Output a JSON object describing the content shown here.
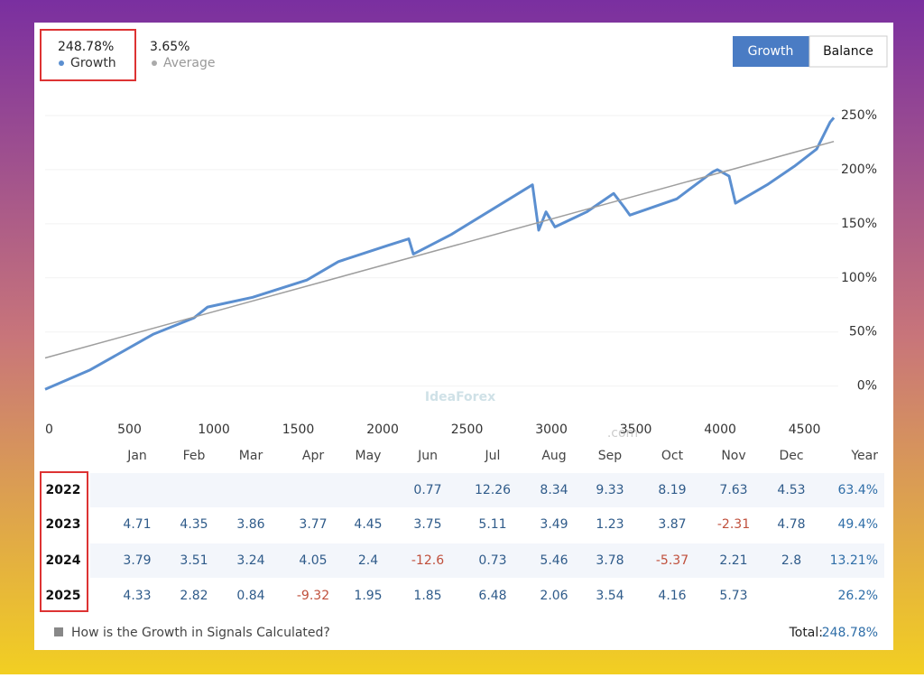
{
  "header": {
    "stats": [
      {
        "value": "248.78%",
        "label": "Growth"
      },
      {
        "value": "3.65%",
        "label": "Average"
      }
    ],
    "tabs": [
      "Growth",
      "Balance"
    ]
  },
  "chart_data": {
    "type": "line",
    "xlim": [
      0,
      4700
    ],
    "xticks": [
      0,
      500,
      1000,
      1500,
      2000,
      2500,
      3000,
      3500,
      4000,
      4500
    ],
    "ylim": [
      -27,
      265
    ],
    "yticks": [
      {
        "value": 0,
        "label": "0%"
      },
      {
        "value": 50,
        "label": "50%"
      },
      {
        "value": 100,
        "label": "100%"
      },
      {
        "value": 150,
        "label": "150%"
      },
      {
        "value": 200,
        "label": "200%"
      },
      {
        "value": 250,
        "label": "250%"
      }
    ],
    "series": [
      {
        "color": "#5b8fd0",
        "x": [
          0,
          267,
          642,
          882,
          963,
          1230,
          1551,
          1738,
          2032,
          2155,
          2182,
          2406,
          2888,
          2925,
          2968,
          3021,
          3209,
          3369,
          3433,
          3465,
          3743,
          3957,
          3984,
          4053,
          4091,
          4278,
          4439,
          4572,
          4652,
          4674
        ],
        "values": [
          -3,
          15,
          48,
          63,
          73,
          82,
          98,
          115,
          130,
          136,
          122,
          140,
          186,
          144,
          161,
          147,
          161,
          178,
          165,
          158,
          173,
          198,
          200,
          194,
          169,
          186,
          203,
          219,
          244,
          248
        ]
      },
      {
        "color": "#9e9e9e",
        "x": [
          0,
          4674
        ],
        "values": [
          26,
          226
        ]
      }
    ]
  },
  "watermark": "IdeaForex",
  "watermark_sub": ".com",
  "table": {
    "columns": [
      "Jan",
      "Feb",
      "Mar",
      "Apr",
      "May",
      "Jun",
      "Jul",
      "Aug",
      "Sep",
      "Oct",
      "Nov",
      "Dec",
      "Year"
    ],
    "rows": [
      {
        "year": "2022",
        "months": [
          null,
          null,
          null,
          null,
          null,
          0.77,
          12.26,
          8.34,
          9.33,
          8.19,
          7.63,
          4.53
        ],
        "total": "63.4%"
      },
      {
        "year": "2023",
        "months": [
          4.71,
          4.35,
          3.86,
          3.77,
          4.45,
          3.75,
          5.11,
          3.49,
          1.23,
          3.87,
          -2.31,
          4.78
        ],
        "total": "49.4%"
      },
      {
        "year": "2024",
        "months": [
          3.79,
          3.51,
          3.24,
          4.05,
          2.4,
          -12.6,
          0.73,
          5.46,
          3.78,
          -5.37,
          2.21,
          2.8
        ],
        "total": "13.21%"
      },
      {
        "year": "2025",
        "months": [
          4.33,
          2.82,
          0.84,
          -9.32,
          1.95,
          1.85,
          6.48,
          2.06,
          3.54,
          4.16,
          5.73,
          null
        ],
        "total": "26.2%"
      }
    ]
  },
  "footer": {
    "link": "How is the Growth in Signals Calculated?",
    "total_label": "Total:",
    "total": "248.78%"
  }
}
